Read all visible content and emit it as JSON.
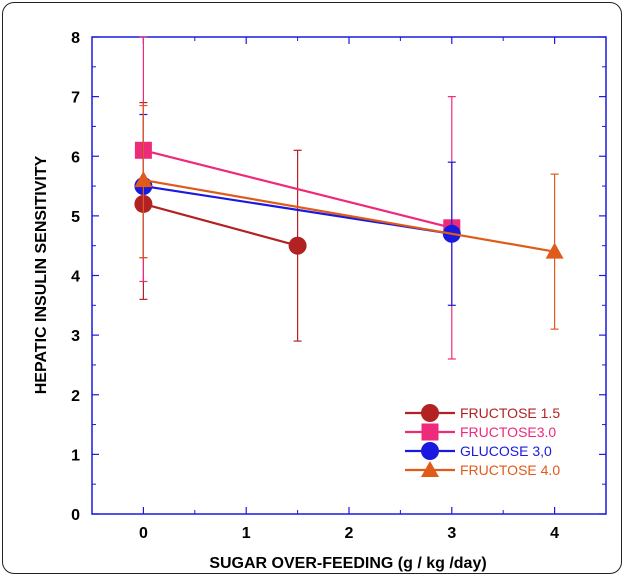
{
  "chart_data": {
    "type": "line",
    "title": "",
    "xlabel": "SUGAR OVER-FEEDING (g / kg /day)",
    "ylabel": "HEPATIC INSULIN SENSITIVITY",
    "xlim": [
      -0.5,
      4.5
    ],
    "ylim": [
      0,
      8
    ],
    "xticks": [
      0,
      1,
      2,
      3,
      4
    ],
    "yticks": [
      0,
      1,
      2,
      3,
      4,
      5,
      6,
      7,
      8
    ],
    "grid": false,
    "legend_position": "bottom-right",
    "series": [
      {
        "name": "FRUCTOSE 1.5",
        "color": "#b22222",
        "marker": "circle",
        "points": [
          {
            "x": 0,
            "y": 5.2,
            "err_low": 3.6,
            "err_high": 6.9
          },
          {
            "x": 1.5,
            "y": 4.5,
            "err_low": 2.9,
            "err_high": 6.1
          }
        ]
      },
      {
        "name": "FRUCTOSE3.0",
        "color": "#ee2a7b",
        "marker": "square",
        "points": [
          {
            "x": 0,
            "y": 6.1,
            "err_low": 3.9,
            "err_high": 8.0
          },
          {
            "x": 3,
            "y": 4.8,
            "err_low": 2.6,
            "err_high": 7.0
          }
        ]
      },
      {
        "name": "GLUCOSE 3,0",
        "color": "#1a1adf",
        "marker": "circle",
        "points": [
          {
            "x": 0,
            "y": 5.5,
            "err_low": 4.3,
            "err_high": 6.7
          },
          {
            "x": 3,
            "y": 4.7,
            "err_low": 3.5,
            "err_high": 5.9
          }
        ]
      },
      {
        "name": "FRUCTOSE 4.0",
        "color": "#e05a1a",
        "marker": "triangle",
        "points": [
          {
            "x": 0,
            "y": 5.6,
            "err_low": 4.3,
            "err_high": 6.85
          },
          {
            "x": 4,
            "y": 4.4,
            "err_low": 3.1,
            "err_high": 5.7
          }
        ]
      }
    ],
    "axis_color": "#1a1adf"
  }
}
